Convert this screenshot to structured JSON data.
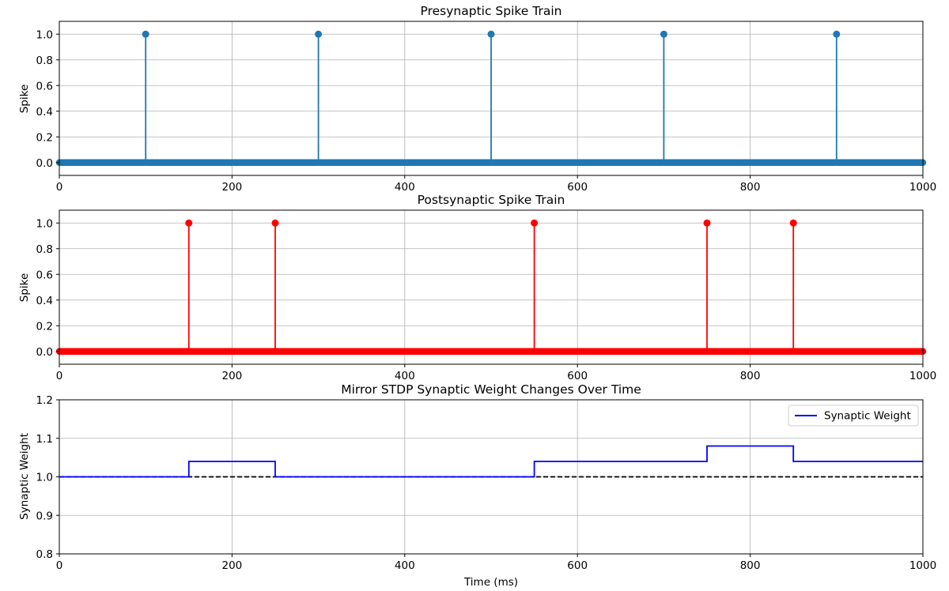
{
  "chart_data": [
    {
      "type": "stem",
      "title": "Presynaptic Spike Train",
      "xlabel": "",
      "ylabel": "Spike",
      "xlim": [
        0,
        1000
      ],
      "ylim": [
        -0.1,
        1.1
      ],
      "x_ticks": [
        "0",
        "200",
        "400",
        "600",
        "800",
        "1000"
      ],
      "y_ticks": [
        "0.0",
        "0.2",
        "0.4",
        "0.6",
        "0.8",
        "1.0"
      ],
      "grid": true,
      "color": "#1f77b4",
      "baseline": 0,
      "sample_step_ms": 1,
      "spike_times": [
        100,
        300,
        500,
        700,
        900
      ],
      "spike_value": 1.0
    },
    {
      "type": "stem",
      "title": "Postsynaptic Spike Train",
      "xlabel": "",
      "ylabel": "Spike",
      "xlim": [
        0,
        1000
      ],
      "ylim": [
        -0.1,
        1.1
      ],
      "x_ticks": [
        "0",
        "200",
        "400",
        "600",
        "800",
        "1000"
      ],
      "y_ticks": [
        "0.0",
        "0.2",
        "0.4",
        "0.6",
        "0.8",
        "1.0"
      ],
      "grid": true,
      "color": "#ff0000",
      "baseline": 0,
      "sample_step_ms": 1,
      "spike_times": [
        150,
        250,
        550,
        750,
        850
      ],
      "spike_value": 1.0
    },
    {
      "type": "line",
      "title": "Mirror STDP Synaptic Weight Changes Over Time",
      "xlabel": "Time (ms)",
      "ylabel": "Synaptic Weight",
      "xlim": [
        0,
        1000
      ],
      "ylim": [
        0.8,
        1.2
      ],
      "x_ticks": [
        "0",
        "200",
        "400",
        "600",
        "800",
        "1000"
      ],
      "y_ticks": [
        "0.8",
        "0.9",
        "1.0",
        "1.1",
        "1.2"
      ],
      "grid": true,
      "legend_position": "top-right",
      "series": [
        {
          "name": "Synaptic Weight",
          "color": "#0000ff",
          "style": "step",
          "x": [
            0,
            150,
            250,
            550,
            750,
            850,
            1000
          ],
          "y": [
            1.0,
            1.04,
            1.0,
            1.04,
            1.08,
            1.04,
            1.04
          ]
        }
      ],
      "reference_line": {
        "y": 1.0,
        "color": "#000000",
        "style": "dashed"
      }
    }
  ]
}
